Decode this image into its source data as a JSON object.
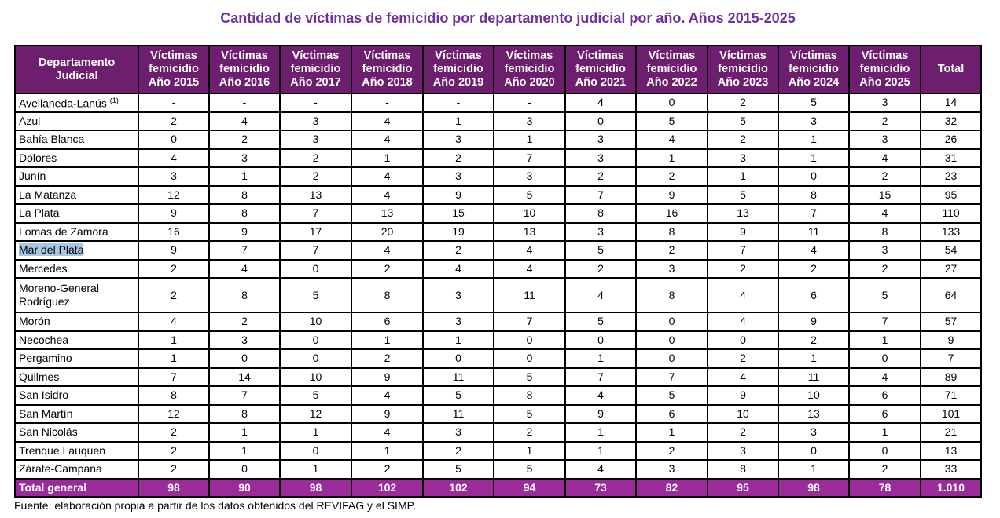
{
  "title": "Cantidad de víctimas de femicidio por departamento judicial por año. Años 2015-2025",
  "table": {
    "headers": [
      {
        "l1": "Departamento",
        "l2": "Judicial",
        "l3": ""
      },
      {
        "l1": "Víctimas",
        "l2": "femicidio",
        "l3": "Año 2015"
      },
      {
        "l1": "Víctimas",
        "l2": "femicidio",
        "l3": "Año 2016"
      },
      {
        "l1": "Víctimas",
        "l2": "femicidio",
        "l3": "Año 2017"
      },
      {
        "l1": "Víctimas",
        "l2": "femicidio",
        "l3": "Año 2018"
      },
      {
        "l1": "Víctimas",
        "l2": "femicidio",
        "l3": "Año 2019"
      },
      {
        "l1": "Víctimas",
        "l2": "femicidio",
        "l3": "Año 2020"
      },
      {
        "l1": "Víctimas",
        "l2": "femicidio",
        "l3": "Año 2021"
      },
      {
        "l1": "Víctimas",
        "l2": "femicidio",
        "l3": "Año 2022"
      },
      {
        "l1": "Víctimas",
        "l2": "femicidio",
        "l3": "Año 2023"
      },
      {
        "l1": "Víctimas",
        "l2": "femicidio",
        "l3": "Año 2024"
      },
      {
        "l1": "Víctimas",
        "l2": "femicidio",
        "l3": "Año 2025"
      },
      {
        "l1": "Total",
        "l2": "",
        "l3": ""
      }
    ],
    "rows": [
      {
        "name": "Avellaneda-Lanús",
        "note": "(1)",
        "values": [
          "-",
          "-",
          "-",
          "-",
          "-",
          "-",
          "4",
          "0",
          "2",
          "5",
          "3",
          "14"
        ]
      },
      {
        "name": "Azul",
        "values": [
          "2",
          "4",
          "3",
          "4",
          "1",
          "3",
          "0",
          "5",
          "5",
          "3",
          "2",
          "32"
        ]
      },
      {
        "name": "Bahía Blanca",
        "values": [
          "0",
          "2",
          "3",
          "4",
          "3",
          "1",
          "3",
          "4",
          "2",
          "1",
          "3",
          "26"
        ]
      },
      {
        "name": "Dolores",
        "values": [
          "4",
          "3",
          "2",
          "1",
          "2",
          "7",
          "3",
          "1",
          "3",
          "1",
          "4",
          "31"
        ]
      },
      {
        "name": "Junín",
        "values": [
          "3",
          "1",
          "2",
          "4",
          "3",
          "3",
          "2",
          "2",
          "1",
          "0",
          "2",
          "23"
        ]
      },
      {
        "name": "La Matanza",
        "values": [
          "12",
          "8",
          "13",
          "4",
          "9",
          "5",
          "7",
          "9",
          "5",
          "8",
          "15",
          "95"
        ]
      },
      {
        "name": "La Plata",
        "values": [
          "9",
          "8",
          "7",
          "13",
          "15",
          "10",
          "8",
          "16",
          "13",
          "7",
          "4",
          "110"
        ]
      },
      {
        "name": "Lomas de Zamora",
        "values": [
          "16",
          "9",
          "17",
          "20",
          "19",
          "13",
          "3",
          "8",
          "9",
          "11",
          "8",
          "133"
        ]
      },
      {
        "name": "Mar del Plata",
        "selected": true,
        "values": [
          "9",
          "7",
          "7",
          "4",
          "2",
          "4",
          "5",
          "2",
          "7",
          "4",
          "3",
          "54"
        ]
      },
      {
        "name": "Mercedes",
        "values": [
          "2",
          "4",
          "0",
          "2",
          "4",
          "4",
          "2",
          "3",
          "2",
          "2",
          "2",
          "27"
        ]
      },
      {
        "name": "Moreno-General Rodríguez",
        "values": [
          "2",
          "8",
          "5",
          "8",
          "3",
          "11",
          "4",
          "8",
          "4",
          "6",
          "5",
          "64"
        ]
      },
      {
        "name": "Morón",
        "values": [
          "4",
          "2",
          "10",
          "6",
          "3",
          "7",
          "5",
          "0",
          "4",
          "9",
          "7",
          "57"
        ]
      },
      {
        "name": "Necochea",
        "values": [
          "1",
          "3",
          "0",
          "1",
          "1",
          "0",
          "0",
          "0",
          "0",
          "2",
          "1",
          "9"
        ]
      },
      {
        "name": "Pergamino",
        "values": [
          "1",
          "0",
          "0",
          "2",
          "0",
          "0",
          "1",
          "0",
          "2",
          "1",
          "0",
          "7"
        ]
      },
      {
        "name": "Quilmes",
        "values": [
          "7",
          "14",
          "10",
          "9",
          "11",
          "5",
          "7",
          "7",
          "4",
          "11",
          "4",
          "89"
        ]
      },
      {
        "name": "San Isidro",
        "values": [
          "8",
          "7",
          "5",
          "4",
          "5",
          "8",
          "4",
          "5",
          "9",
          "10",
          "6",
          "71"
        ]
      },
      {
        "name": "San Martín",
        "values": [
          "12",
          "8",
          "12",
          "9",
          "11",
          "5",
          "9",
          "6",
          "10",
          "13",
          "6",
          "101"
        ]
      },
      {
        "name": "San Nicolás",
        "values": [
          "2",
          "1",
          "1",
          "4",
          "3",
          "2",
          "1",
          "1",
          "2",
          "3",
          "1",
          "21"
        ]
      },
      {
        "name": "Trenque Lauquen",
        "values": [
          "2",
          "1",
          "0",
          "1",
          "2",
          "1",
          "1",
          "2",
          "3",
          "0",
          "0",
          "13"
        ]
      },
      {
        "name": "Zárate-Campana",
        "values": [
          "2",
          "0",
          "1",
          "2",
          "5",
          "5",
          "4",
          "3",
          "8",
          "1",
          "2",
          "33"
        ]
      }
    ],
    "total": {
      "name": "Total general",
      "values": [
        "98",
        "90",
        "98",
        "102",
        "102",
        "94",
        "73",
        "82",
        "95",
        "98",
        "78",
        "1.010"
      ]
    }
  },
  "source": "Fuente: elaboración propia a partir de los datos obtenidos del REVIFAG y el SIMP.",
  "colors": {
    "title": "#7030a0",
    "header": "#6e1e6e",
    "total_row": "#9b2a9b"
  }
}
